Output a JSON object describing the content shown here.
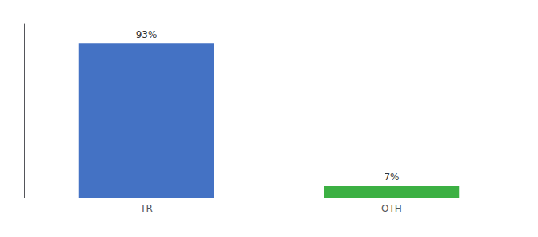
{
  "chart_data": {
    "type": "bar",
    "categories": [
      "TR",
      "OTH"
    ],
    "values": [
      93,
      7
    ],
    "value_labels": [
      "93%",
      "7%"
    ],
    "colors": [
      "#4472c4",
      "#3cb043"
    ],
    "ylim": [
      0,
      105
    ],
    "data_labels": true,
    "tick_labels": "x",
    "grid": false
  }
}
